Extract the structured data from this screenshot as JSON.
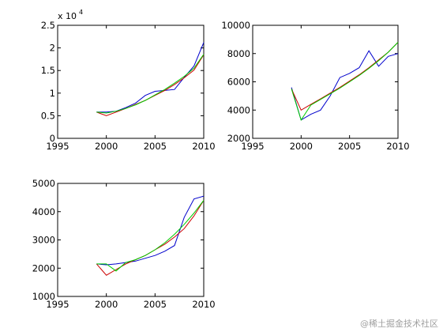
{
  "chart_data": [
    {
      "type": "line",
      "x_ticks": [
        1995,
        2000,
        2005,
        2010
      ],
      "y_ticks": [
        0,
        0.5,
        1,
        1.5,
        2,
        2.5
      ],
      "y_tick_labels": [
        "0",
        "0.5",
        "1",
        "1.5",
        "2",
        "2.5"
      ],
      "xlim": [
        1995,
        2010
      ],
      "ylim": [
        0,
        2.5
      ],
      "exponent_prefix": "x 10",
      "exponent_power": "4",
      "series": [
        {
          "color": "#0000cc",
          "x": [
            1999,
            2000,
            2001,
            2002,
            2003,
            2004,
            2005,
            2006,
            2007,
            2008,
            2009,
            2010
          ],
          "y": [
            0.58,
            0.58,
            0.6,
            0.68,
            0.78,
            0.95,
            1.04,
            1.06,
            1.08,
            1.35,
            1.6,
            2.12
          ]
        },
        {
          "color": "#cc0000",
          "x": [
            1999,
            2000,
            2001,
            2002,
            2003,
            2004,
            2005,
            2006,
            2007,
            2008,
            2009,
            2010
          ],
          "y": [
            0.58,
            0.5,
            0.58,
            0.66,
            0.75,
            0.84,
            0.95,
            1.06,
            1.19,
            1.34,
            1.51,
            1.85
          ]
        },
        {
          "color": "#00cc00",
          "x": [
            1999,
            2000,
            2001,
            2002,
            2003,
            2004,
            2005,
            2006,
            2007,
            2008,
            2009,
            2010
          ],
          "y": [
            0.58,
            0.56,
            0.6,
            0.66,
            0.74,
            0.84,
            0.96,
            1.08,
            1.22,
            1.37,
            1.55,
            1.86
          ]
        }
      ]
    },
    {
      "type": "line",
      "x_ticks": [
        1995,
        2000,
        2005,
        2010
      ],
      "y_ticks": [
        2000,
        4000,
        6000,
        8000,
        10000
      ],
      "y_tick_labels": [
        "2000",
        "4000",
        "6000",
        "8000",
        "10000"
      ],
      "xlim": [
        1995,
        2010
      ],
      "ylim": [
        2000,
        10000
      ],
      "series": [
        {
          "color": "#0000cc",
          "x": [
            1999,
            2000,
            2001,
            2002,
            2003,
            2004,
            2005,
            2006,
            2007,
            2008,
            2009,
            2010
          ],
          "y": [
            5600,
            3300,
            3700,
            4000,
            5000,
            6300,
            6600,
            7000,
            8200,
            7100,
            7800,
            8000
          ]
        },
        {
          "color": "#cc0000",
          "x": [
            1999,
            2000,
            2001,
            2002,
            2003,
            2004,
            2005,
            2006,
            2007,
            2008,
            2009,
            2010
          ],
          "y": [
            5500,
            4000,
            4400,
            4800,
            5200,
            5600,
            6050,
            6500,
            7000,
            7550,
            8100,
            8800
          ]
        },
        {
          "color": "#00cc00",
          "x": [
            1999,
            2000,
            2001,
            2002,
            2003,
            2004,
            2005,
            2006,
            2007,
            2008,
            2009,
            2010
          ],
          "y": [
            5500,
            3300,
            4350,
            4750,
            5150,
            5550,
            6000,
            6450,
            6950,
            7500,
            8100,
            8800
          ]
        }
      ]
    },
    {
      "type": "line",
      "x_ticks": [
        1995,
        2000,
        2005,
        2010
      ],
      "y_ticks": [
        1000,
        2000,
        3000,
        4000,
        5000
      ],
      "y_tick_labels": [
        "1000",
        "2000",
        "3000",
        "4000",
        "5000"
      ],
      "xlim": [
        1995,
        2010
      ],
      "ylim": [
        1000,
        5000
      ],
      "series": [
        {
          "color": "#0000cc",
          "x": [
            1999,
            2000,
            2001,
            2002,
            2003,
            2004,
            2005,
            2006,
            2007,
            2008,
            2009,
            2010
          ],
          "y": [
            2150,
            2120,
            2150,
            2200,
            2250,
            2350,
            2450,
            2600,
            2800,
            3800,
            4450,
            4550
          ]
        },
        {
          "color": "#cc0000",
          "x": [
            1999,
            2000,
            2001,
            2002,
            2003,
            2004,
            2005,
            2006,
            2007,
            2008,
            2009,
            2010
          ],
          "y": [
            2150,
            1750,
            1950,
            2150,
            2300,
            2450,
            2650,
            2850,
            3100,
            3400,
            3850,
            4400
          ]
        },
        {
          "color": "#00cc00",
          "x": [
            1999,
            2000,
            2001,
            2002,
            2003,
            2004,
            2005,
            2006,
            2007,
            2008,
            2009,
            2010
          ],
          "y": [
            2150,
            2150,
            1900,
            2200,
            2300,
            2450,
            2650,
            2900,
            3200,
            3550,
            3950,
            4400
          ]
        }
      ]
    }
  ],
  "watermark": "@稀土掘金技术社区"
}
